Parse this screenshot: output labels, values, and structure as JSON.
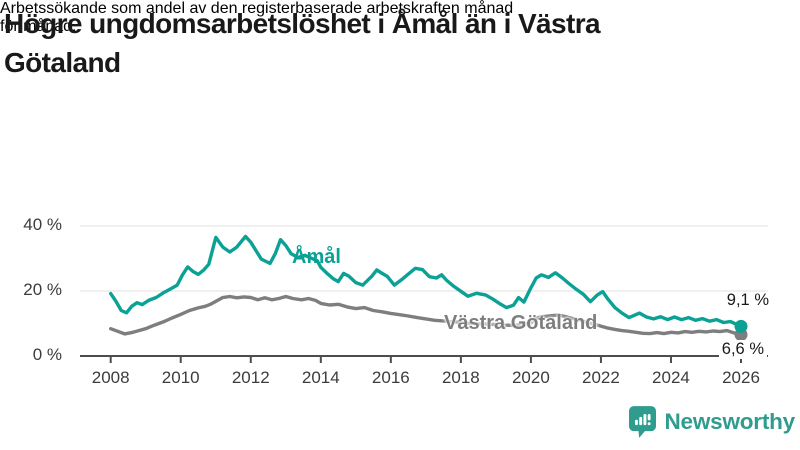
{
  "header": {
    "title": "Högre ungdomsarbetslöshet i Åmål än i Västra Götaland",
    "title_lines": [
      "Högre ungdomsarbetslöshet i Åmål än i Västra",
      "Götaland"
    ],
    "subtitle": "Arbetssökande som andel av den registerbaserade arbetskraften månad för månad.",
    "subtitle_lines": [
      "Arbetssökande som andel av den registerbaserade arbetskraften månad",
      "för månad."
    ]
  },
  "chart_data": {
    "type": "line",
    "unit": "percent of registered labour force",
    "x_axis": {
      "ticks": [
        2008,
        2010,
        2012,
        2014,
        2016,
        2018,
        2020,
        2022,
        2024,
        2026
      ],
      "range": [
        2008,
        2026.2
      ]
    },
    "y_axis": {
      "ticks": [
        {
          "value": 0,
          "label": "0 %"
        },
        {
          "value": 20,
          "label": "20 %"
        },
        {
          "value": 40,
          "label": "40 %"
        }
      ],
      "range": [
        0,
        42
      ]
    },
    "grid": "horizontal",
    "style": {
      "grid_color": "#e2e2e2",
      "axis_color": "#4d4d4d",
      "label_color": "#3c3c3c"
    },
    "series": [
      {
        "name": "Åmål",
        "color": "#0ba195",
        "end_label": "9,1 %",
        "end_value": 9.1,
        "points": [
          [
            2008.0,
            19.2
          ],
          [
            2008.15,
            16.8
          ],
          [
            2008.3,
            14.0
          ],
          [
            2008.45,
            13.3
          ],
          [
            2008.6,
            15.3
          ],
          [
            2008.75,
            16.4
          ],
          [
            2008.9,
            15.8
          ],
          [
            2009.1,
            17.2
          ],
          [
            2009.3,
            18.0
          ],
          [
            2009.5,
            19.4
          ],
          [
            2009.7,
            20.6
          ],
          [
            2009.9,
            21.8
          ],
          [
            2010.05,
            25.0
          ],
          [
            2010.2,
            27.4
          ],
          [
            2010.35,
            26.0
          ],
          [
            2010.5,
            25.1
          ],
          [
            2010.65,
            26.4
          ],
          [
            2010.8,
            28.2
          ],
          [
            2011.0,
            36.5
          ],
          [
            2011.2,
            33.5
          ],
          [
            2011.4,
            32.0
          ],
          [
            2011.6,
            33.5
          ],
          [
            2011.85,
            36.8
          ],
          [
            2012.0,
            35.0
          ],
          [
            2012.3,
            29.8
          ],
          [
            2012.55,
            28.5
          ],
          [
            2012.7,
            31.5
          ],
          [
            2012.85,
            35.8
          ],
          [
            2013.0,
            34.0
          ],
          [
            2013.15,
            31.5
          ],
          [
            2013.35,
            30.3
          ],
          [
            2013.55,
            31.0
          ],
          [
            2013.75,
            30.0
          ],
          [
            2013.9,
            29.3
          ],
          [
            2014.0,
            27.3
          ],
          [
            2014.2,
            25.2
          ],
          [
            2014.35,
            23.8
          ],
          [
            2014.5,
            22.9
          ],
          [
            2014.65,
            25.4
          ],
          [
            2014.8,
            24.6
          ],
          [
            2015.0,
            22.6
          ],
          [
            2015.2,
            21.8
          ],
          [
            2015.45,
            24.5
          ],
          [
            2015.6,
            26.5
          ],
          [
            2015.75,
            25.4
          ],
          [
            2015.9,
            24.5
          ],
          [
            2016.1,
            21.8
          ],
          [
            2016.3,
            23.4
          ],
          [
            2016.5,
            25.2
          ],
          [
            2016.7,
            27.0
          ],
          [
            2016.9,
            26.6
          ],
          [
            2017.1,
            24.4
          ],
          [
            2017.3,
            24.0
          ],
          [
            2017.45,
            25.0
          ],
          [
            2017.6,
            23.2
          ],
          [
            2017.8,
            21.4
          ],
          [
            2018.0,
            19.9
          ],
          [
            2018.2,
            18.4
          ],
          [
            2018.45,
            19.3
          ],
          [
            2018.7,
            18.8
          ],
          [
            2018.9,
            17.6
          ],
          [
            2019.1,
            16.2
          ],
          [
            2019.3,
            14.9
          ],
          [
            2019.5,
            15.6
          ],
          [
            2019.65,
            18.0
          ],
          [
            2019.8,
            16.6
          ],
          [
            2020.0,
            21.0
          ],
          [
            2020.15,
            24.0
          ],
          [
            2020.3,
            25.0
          ],
          [
            2020.5,
            24.2
          ],
          [
            2020.7,
            25.6
          ],
          [
            2020.9,
            24.0
          ],
          [
            2021.1,
            22.2
          ],
          [
            2021.3,
            20.5
          ],
          [
            2021.5,
            19.0
          ],
          [
            2021.7,
            16.7
          ],
          [
            2021.9,
            18.8
          ],
          [
            2022.05,
            19.8
          ],
          [
            2022.2,
            17.5
          ],
          [
            2022.4,
            14.9
          ],
          [
            2022.6,
            13.2
          ],
          [
            2022.8,
            11.8
          ],
          [
            2023.1,
            13.2
          ],
          [
            2023.3,
            12.0
          ],
          [
            2023.5,
            11.4
          ],
          [
            2023.7,
            12.1
          ],
          [
            2023.9,
            11.2
          ],
          [
            2024.1,
            12.0
          ],
          [
            2024.3,
            11.2
          ],
          [
            2024.5,
            11.8
          ],
          [
            2024.7,
            11.0
          ],
          [
            2024.9,
            11.5
          ],
          [
            2025.1,
            10.7
          ],
          [
            2025.3,
            11.2
          ],
          [
            2025.5,
            10.3
          ],
          [
            2025.7,
            10.6
          ],
          [
            2025.85,
            9.8
          ],
          [
            2026.0,
            9.1
          ]
        ]
      },
      {
        "name": "Västra Götaland",
        "color": "#7e7e7e",
        "end_label": "6,6 %",
        "end_value": 6.6,
        "points": [
          [
            2008.0,
            8.4
          ],
          [
            2008.2,
            7.6
          ],
          [
            2008.4,
            6.8
          ],
          [
            2008.6,
            7.2
          ],
          [
            2008.8,
            7.8
          ],
          [
            2009.0,
            8.4
          ],
          [
            2009.25,
            9.5
          ],
          [
            2009.5,
            10.5
          ],
          [
            2009.75,
            11.7
          ],
          [
            2010.0,
            12.8
          ],
          [
            2010.25,
            14.0
          ],
          [
            2010.5,
            14.8
          ],
          [
            2010.7,
            15.3
          ],
          [
            2010.85,
            15.9
          ],
          [
            2011.0,
            16.8
          ],
          [
            2011.2,
            18.0
          ],
          [
            2011.4,
            18.3
          ],
          [
            2011.6,
            17.9
          ],
          [
            2011.8,
            18.2
          ],
          [
            2012.0,
            18.0
          ],
          [
            2012.2,
            17.3
          ],
          [
            2012.4,
            17.9
          ],
          [
            2012.6,
            17.3
          ],
          [
            2012.8,
            17.7
          ],
          [
            2013.0,
            18.3
          ],
          [
            2013.2,
            17.7
          ],
          [
            2013.45,
            17.3
          ],
          [
            2013.65,
            17.7
          ],
          [
            2013.85,
            17.1
          ],
          [
            2014.0,
            16.2
          ],
          [
            2014.25,
            15.7
          ],
          [
            2014.5,
            15.9
          ],
          [
            2014.75,
            15.1
          ],
          [
            2015.0,
            14.6
          ],
          [
            2015.25,
            14.9
          ],
          [
            2015.5,
            14.0
          ],
          [
            2015.75,
            13.6
          ],
          [
            2016.0,
            13.1
          ],
          [
            2016.25,
            12.7
          ],
          [
            2016.5,
            12.3
          ],
          [
            2016.75,
            11.8
          ],
          [
            2017.0,
            11.4
          ],
          [
            2017.25,
            11.0
          ],
          [
            2017.5,
            10.8
          ],
          [
            2017.75,
            10.5
          ],
          [
            2018.0,
            10.4
          ],
          [
            2018.25,
            10.0
          ],
          [
            2018.5,
            9.9
          ],
          [
            2018.75,
            9.8
          ],
          [
            2019.0,
            9.7
          ],
          [
            2019.25,
            9.5
          ],
          [
            2019.5,
            9.4
          ],
          [
            2019.75,
            9.6
          ],
          [
            2020.0,
            10.2
          ],
          [
            2020.2,
            11.8
          ],
          [
            2020.4,
            12.2
          ],
          [
            2020.6,
            12.4
          ],
          [
            2020.8,
            12.6
          ],
          [
            2021.0,
            12.1
          ],
          [
            2021.2,
            11.5
          ],
          [
            2021.4,
            11.0
          ],
          [
            2021.6,
            10.3
          ],
          [
            2021.8,
            9.8
          ],
          [
            2022.0,
            9.2
          ],
          [
            2022.2,
            8.6
          ],
          [
            2022.4,
            8.2
          ],
          [
            2022.6,
            7.8
          ],
          [
            2022.8,
            7.6
          ],
          [
            2023.0,
            7.3
          ],
          [
            2023.2,
            7.0
          ],
          [
            2023.4,
            6.9
          ],
          [
            2023.6,
            7.2
          ],
          [
            2023.8,
            6.9
          ],
          [
            2024.0,
            7.3
          ],
          [
            2024.2,
            7.1
          ],
          [
            2024.4,
            7.5
          ],
          [
            2024.6,
            7.3
          ],
          [
            2024.8,
            7.6
          ],
          [
            2025.0,
            7.4
          ],
          [
            2025.2,
            7.7
          ],
          [
            2025.4,
            7.5
          ],
          [
            2025.6,
            7.8
          ],
          [
            2025.8,
            7.1
          ],
          [
            2026.0,
            6.6
          ]
        ]
      }
    ]
  },
  "branding": {
    "name": "Newsworthy",
    "color": "#2f9c8d",
    "icon": "bar-chart-bubble-icon"
  }
}
